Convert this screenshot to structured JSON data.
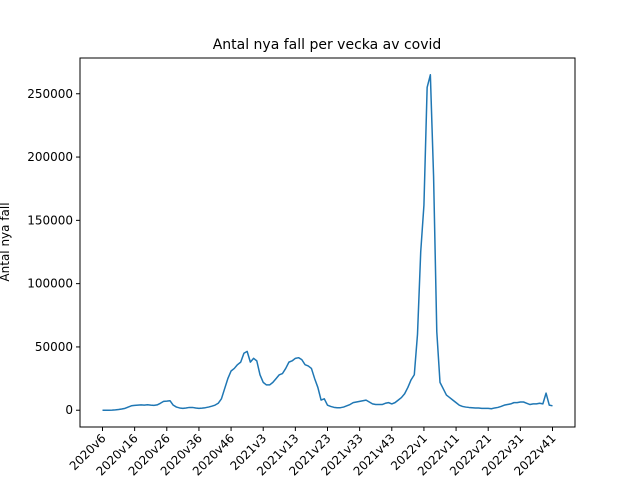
{
  "chart_data": {
    "type": "line",
    "title": "Antal nya fall per vecka av covid",
    "ylabel": "Antal nya fall",
    "categories": [
      "2020v6",
      null,
      null,
      null,
      null,
      null,
      null,
      null,
      null,
      null,
      "2020v16",
      null,
      null,
      null,
      null,
      null,
      null,
      null,
      null,
      null,
      "2020v26",
      null,
      null,
      null,
      null,
      null,
      null,
      null,
      null,
      null,
      "2020v36",
      null,
      null,
      null,
      null,
      null,
      null,
      null,
      null,
      null,
      "2020v46",
      null,
      null,
      null,
      null,
      null,
      null,
      null,
      null,
      null,
      "2021v3",
      null,
      null,
      null,
      null,
      null,
      null,
      null,
      null,
      null,
      "2021v13",
      null,
      null,
      null,
      null,
      null,
      null,
      null,
      null,
      null,
      "2021v23",
      null,
      null,
      null,
      null,
      null,
      null,
      null,
      null,
      null,
      "2021v33",
      null,
      null,
      null,
      null,
      null,
      null,
      null,
      null,
      null,
      "2021v43",
      null,
      null,
      null,
      null,
      null,
      null,
      null,
      null,
      null,
      "2022v1",
      null,
      null,
      null,
      null,
      null,
      null,
      null,
      null,
      null,
      "2022v11",
      null,
      null,
      null,
      null,
      null,
      null,
      null,
      null,
      null,
      "2022v21",
      null,
      null,
      null,
      null,
      null,
      null,
      null,
      null,
      null,
      "2022v31",
      null,
      null,
      null,
      null,
      null,
      null,
      null,
      null,
      null,
      "2022v41"
    ],
    "series": [
      {
        "name": "Antal nya fall",
        "color": "#1f77b4",
        "values": [
          0,
          0,
          0,
          100,
          300,
          600,
          1000,
          1500,
          2500,
          3500,
          3800,
          4000,
          4200,
          4000,
          4300,
          4000,
          3800,
          4200,
          5500,
          7000,
          7200,
          7500,
          4000,
          2500,
          1800,
          1500,
          1800,
          2200,
          2200,
          1800,
          1500,
          1700,
          2000,
          2500,
          3200,
          4000,
          5500,
          9000,
          17000,
          25000,
          31000,
          33000,
          36000,
          38000,
          45000,
          46500,
          38000,
          41000,
          39000,
          28000,
          22000,
          20000,
          20000,
          22000,
          25000,
          28000,
          29000,
          33000,
          38000,
          39000,
          41000,
          41500,
          40000,
          36000,
          35000,
          33000,
          25000,
          18000,
          8000,
          9000,
          4000,
          3000,
          2300,
          2000,
          2000,
          2500,
          3500,
          4500,
          6000,
          6500,
          7000,
          7500,
          8000,
          6500,
          5000,
          4500,
          4500,
          4500,
          5500,
          6000,
          5000,
          6000,
          8000,
          10000,
          13000,
          18000,
          24000,
          28000,
          60000,
          125000,
          162000,
          255000,
          265000,
          185000,
          62000,
          22000,
          17000,
          12000,
          10000,
          8000,
          6000,
          4000,
          3000,
          2500,
          2200,
          2000,
          1800,
          1800,
          1500,
          1500,
          1500,
          1200,
          1800,
          2200,
          3000,
          4000,
          4500,
          5000,
          6000,
          6000,
          6500,
          6500,
          5500,
          4500,
          5000,
          5000,
          5500,
          5000,
          13500,
          4000,
          3500
        ]
      }
    ],
    "ylim": [
      -13250,
      278250
    ],
    "yticks": [
      0,
      50000,
      100000,
      150000,
      200000,
      250000
    ]
  }
}
